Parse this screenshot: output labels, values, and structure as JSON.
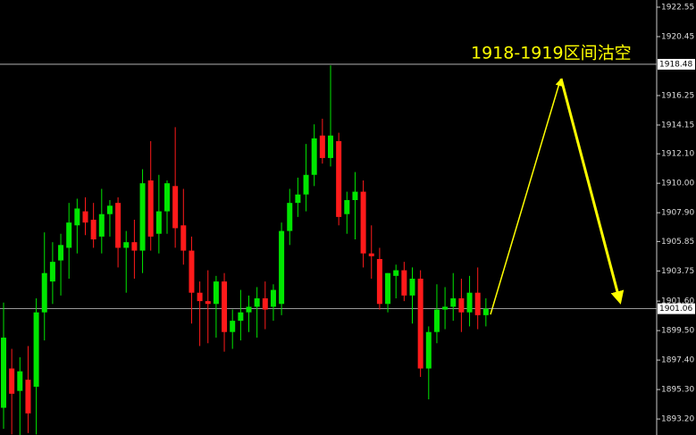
{
  "chart_data": {
    "type": "candlestick",
    "annotation": "1918-1919区间沽空",
    "up_color": "#00e600",
    "down_color": "#ff1a1a",
    "ylim": [
      1892.06,
      1923.06
    ],
    "yticks": [
      1922.55,
      1920.45,
      1916.25,
      1914.15,
      {
        "value": 1912.1,
        "label": "1912.10"
      },
      {
        "value": 1910,
        "label": "1910.00"
      },
      {
        "value": 1907.9,
        "label": "1907.90"
      },
      1905.85,
      1903.75,
      {
        "value": 1901.6,
        "label": "1901.60"
      },
      {
        "value": 1899.5,
        "label": "1899.50"
      },
      {
        "value": 1897.4,
        "label": "1897.40"
      },
      {
        "value": 1895.3,
        "label": "1895.30"
      },
      {
        "value": 1893.2,
        "label": "1893.20"
      }
    ],
    "hlines": [
      1918.48,
      1901.06
    ],
    "candles": [
      [
        1894.0,
        1901.5,
        1892.5,
        1899.0
      ],
      [
        1896.8,
        1898.2,
        1892.1,
        1895.0
      ],
      [
        1895.2,
        1897.6,
        1892.0,
        1896.6
      ],
      [
        1896.0,
        1898.4,
        1892.2,
        1893.6
      ],
      [
        1895.5,
        1901.8,
        1892.1,
        1900.8
      ],
      [
        1900.8,
        1906.5,
        1898.8,
        1903.6
      ],
      [
        1903.0,
        1905.8,
        1901.4,
        1904.4
      ],
      [
        1904.5,
        1906.4,
        1902.0,
        1905.6
      ],
      [
        1905.4,
        1908.6,
        1903.2,
        1907.2
      ],
      [
        1907.0,
        1908.9,
        1905.0,
        1908.2
      ],
      [
        1908.0,
        1909.0,
        1906.3,
        1907.2
      ],
      [
        1907.4,
        1908.6,
        1905.4,
        1906.0
      ],
      [
        1906.2,
        1909.6,
        1905.0,
        1907.8
      ],
      [
        1907.8,
        1908.8,
        1906.2,
        1908.4
      ],
      [
        1908.6,
        1909.0,
        1904.0,
        1905.4
      ],
      [
        1905.4,
        1906.6,
        1902.2,
        1905.8
      ],
      [
        1905.8,
        1907.4,
        1903.2,
        1905.2
      ],
      [
        1905.2,
        1911.0,
        1903.6,
        1910.0
      ],
      [
        1910.2,
        1913.0,
        1905.2,
        1906.2
      ],
      [
        1906.4,
        1910.6,
        1905.0,
        1908.0
      ],
      [
        1908.0,
        1910.2,
        1906.4,
        1910.0
      ],
      [
        1909.8,
        1914.0,
        1905.4,
        1906.8
      ],
      [
        1907.0,
        1909.6,
        1904.2,
        1905.2
      ],
      [
        1905.2,
        1906.2,
        1900.0,
        1902.2
      ],
      [
        1902.2,
        1903.0,
        1898.4,
        1901.6
      ],
      [
        1901.6,
        1903.8,
        1898.6,
        1901.4
      ],
      [
        1901.4,
        1903.4,
        1899.0,
        1903.0
      ],
      [
        1903.0,
        1903.6,
        1898.0,
        1899.4
      ],
      [
        1899.4,
        1901.0,
        1898.2,
        1900.2
      ],
      [
        1900.2,
        1902.4,
        1898.8,
        1900.8
      ],
      [
        1900.8,
        1902.0,
        1899.4,
        1901.2
      ],
      [
        1901.2,
        1902.6,
        1899.0,
        1901.8
      ],
      [
        1901.8,
        1903.0,
        1899.6,
        1901.0
      ],
      [
        1901.2,
        1902.8,
        1900.2,
        1902.4
      ],
      [
        1901.4,
        1907.2,
        1900.6,
        1906.6
      ],
      [
        1906.6,
        1909.6,
        1905.6,
        1908.6
      ],
      [
        1908.6,
        1910.4,
        1907.6,
        1909.2
      ],
      [
        1909.2,
        1912.8,
        1908.0,
        1910.6
      ],
      [
        1910.6,
        1914.2,
        1909.8,
        1913.2
      ],
      [
        1913.4,
        1914.6,
        1911.4,
        1911.8
      ],
      [
        1911.8,
        1918.4,
        1911.2,
        1913.4
      ],
      [
        1913.0,
        1913.6,
        1907.0,
        1907.6
      ],
      [
        1907.8,
        1909.4,
        1906.4,
        1908.8
      ],
      [
        1908.8,
        1910.8,
        1906.0,
        1909.4
      ],
      [
        1909.4,
        1910.2,
        1904.0,
        1905.0
      ],
      [
        1905.0,
        1907.0,
        1903.2,
        1904.8
      ],
      [
        1904.6,
        1905.4,
        1901.0,
        1901.4
      ],
      [
        1901.4,
        1903.6,
        1900.8,
        1903.6
      ],
      [
        1903.4,
        1904.2,
        1901.8,
        1903.8
      ],
      [
        1903.8,
        1904.4,
        1901.6,
        1902.0
      ],
      [
        1902.0,
        1904.0,
        1900.0,
        1903.2
      ],
      [
        1903.2,
        1903.8,
        1896.2,
        1896.8
      ],
      [
        1896.8,
        1899.8,
        1894.6,
        1899.4
      ],
      [
        1899.4,
        1902.8,
        1898.6,
        1901.0
      ],
      [
        1901.0,
        1902.6,
        1899.6,
        1901.2
      ],
      [
        1901.2,
        1903.6,
        1900.2,
        1901.8
      ],
      [
        1901.8,
        1903.2,
        1899.4,
        1900.8
      ],
      [
        1900.8,
        1903.4,
        1899.8,
        1902.2
      ],
      [
        1902.2,
        1904.0,
        1899.6,
        1900.6
      ],
      [
        1900.6,
        1901.8,
        1899.8,
        1901.06
      ]
    ]
  }
}
